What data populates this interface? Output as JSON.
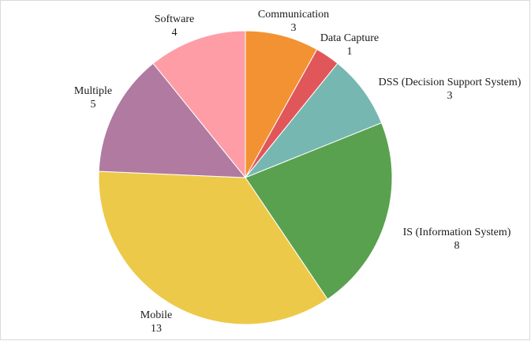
{
  "chart_data": {
    "type": "pie",
    "title": "",
    "slices": [
      {
        "label": "Communication",
        "value": 3,
        "color": "#f29232"
      },
      {
        "label": "Data Capture",
        "value": 1,
        "color": "#e15759"
      },
      {
        "label": "DSS (Decision Support System)",
        "value": 3,
        "color": "#76b7b2"
      },
      {
        "label": "IS (Information System)",
        "value": 8,
        "color": "#59a14f"
      },
      {
        "label": "Mobile",
        "value": 13,
        "color": "#edc949"
      },
      {
        "label": "Multiple",
        "value": 5,
        "color": "#b07aa1"
      },
      {
        "label": "Software",
        "value": 4,
        "color": "#ff9da7"
      }
    ],
    "start": "12 o'clock",
    "direction": "clockwise",
    "legend": "none",
    "data_labels": "category name and value, outside"
  }
}
